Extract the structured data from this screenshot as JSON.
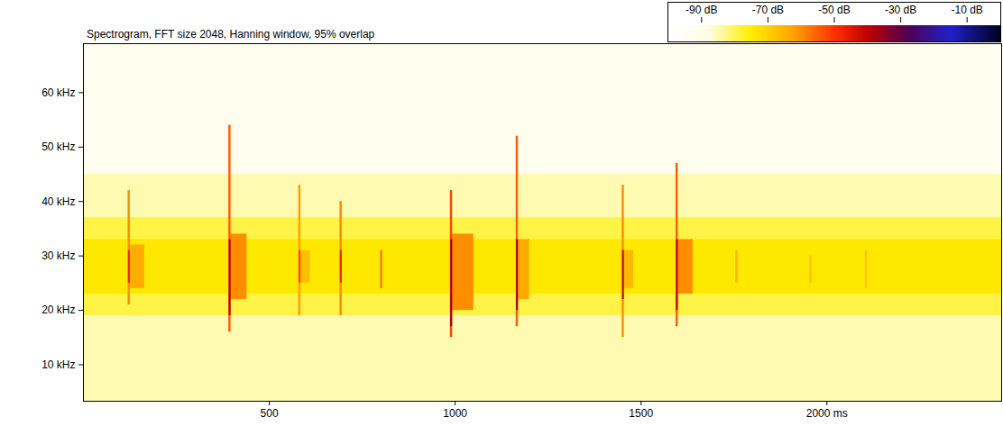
{
  "chart_data": {
    "type": "heatmap",
    "title": "Spectrogram, FFT size 2048, Hanning window, 95% overlap",
    "xlim": [
      0,
      2470
    ],
    "xticks": [
      500,
      1000,
      1500,
      {
        "value": 2000,
        "label": "2000 ms"
      }
    ],
    "ylim": [
      3.3,
      69
    ],
    "yticks": [
      {
        "value": 10,
        "label": "10 kHz"
      },
      {
        "value": 20,
        "label": "20 kHz"
      },
      {
        "value": 30,
        "label": "30 kHz"
      },
      {
        "value": 40,
        "label": "40 kHz"
      },
      {
        "value": 50,
        "label": "50 kHz"
      },
      {
        "value": 60,
        "label": "60 kHz"
      }
    ],
    "grid": false,
    "cells": [
      {
        "x1": 0,
        "x2": 2470,
        "y1": 3.3,
        "y2": 45,
        "value": -85
      },
      {
        "x1": 0,
        "x2": 2470,
        "y1": 45,
        "y2": 69,
        "value": -91
      },
      {
        "x1": 0,
        "x2": 2470,
        "y1": 19,
        "y2": 37,
        "value": -79
      },
      {
        "x1": 0,
        "x2": 2470,
        "y1": 23,
        "y2": 33,
        "value": -74
      },
      {
        "x1": 123,
        "x2": 165,
        "y1": 24,
        "y2": 32,
        "value": -64
      },
      {
        "x1": 394,
        "x2": 440,
        "y1": 22,
        "y2": 34,
        "value": -60
      },
      {
        "x1": 582,
        "x2": 610,
        "y1": 25,
        "y2": 31,
        "value": -67
      },
      {
        "x1": 990,
        "x2": 1050,
        "y1": 20,
        "y2": 34,
        "value": -60
      },
      {
        "x1": 1167,
        "x2": 1200,
        "y1": 22,
        "y2": 33,
        "value": -64
      },
      {
        "x1": 1452,
        "x2": 1480,
        "y1": 24,
        "y2": 31,
        "value": -66
      },
      {
        "x1": 1597,
        "x2": 1640,
        "y1": 23,
        "y2": 33,
        "value": -60
      },
      {
        "x1": 120,
        "x2": 126,
        "y1": 21,
        "y2": 42,
        "value": -60
      },
      {
        "x1": 121,
        "x2": 126,
        "y1": 25,
        "y2": 31,
        "value": -48
      },
      {
        "x1": 391,
        "x2": 397,
        "y1": 16,
        "y2": 54,
        "value": -55
      },
      {
        "x1": 392,
        "x2": 397,
        "y1": 19,
        "y2": 33,
        "value": -38
      },
      {
        "x1": 579,
        "x2": 585,
        "y1": 19,
        "y2": 43,
        "value": -62
      },
      {
        "x1": 580,
        "x2": 585,
        "y1": 25,
        "y2": 31,
        "value": -52
      },
      {
        "x1": 690,
        "x2": 696,
        "y1": 19,
        "y2": 40,
        "value": -60
      },
      {
        "x1": 691,
        "x2": 696,
        "y1": 25,
        "y2": 31,
        "value": -48
      },
      {
        "x1": 799,
        "x2": 805,
        "y1": 24,
        "y2": 31,
        "value": -58
      },
      {
        "x1": 987,
        "x2": 993,
        "y1": 15,
        "y2": 42,
        "value": -52
      },
      {
        "x1": 988,
        "x2": 993,
        "y1": 17,
        "y2": 33,
        "value": -36
      },
      {
        "x1": 1164,
        "x2": 1170,
        "y1": 17,
        "y2": 52,
        "value": -55
      },
      {
        "x1": 1165,
        "x2": 1170,
        "y1": 20,
        "y2": 33,
        "value": -38
      },
      {
        "x1": 1449,
        "x2": 1455,
        "y1": 15,
        "y2": 43,
        "value": -60
      },
      {
        "x1": 1450,
        "x2": 1455,
        "y1": 22,
        "y2": 31,
        "value": -42
      },
      {
        "x1": 1594,
        "x2": 1600,
        "y1": 17,
        "y2": 47,
        "value": -55
      },
      {
        "x1": 1595,
        "x2": 1600,
        "y1": 20,
        "y2": 33,
        "value": -40
      },
      {
        "x1": 1755,
        "x2": 1761,
        "y1": 25,
        "y2": 31,
        "value": -66
      },
      {
        "x1": 1954,
        "x2": 1960,
        "y1": 25,
        "y2": 30,
        "value": -68
      },
      {
        "x1": 2103,
        "x2": 2109,
        "y1": 24,
        "y2": 31,
        "value": -68
      }
    ],
    "colorbar": {
      "range": [
        -100,
        0
      ],
      "ticks": [
        {
          "value": -90,
          "label": "-90 dB"
        },
        {
          "value": -70,
          "label": "-70 dB"
        },
        {
          "value": -50,
          "label": "-50 dB"
        },
        {
          "value": -30,
          "label": "-30 dB"
        },
        {
          "value": -10,
          "label": "-10 dB"
        }
      ]
    }
  }
}
